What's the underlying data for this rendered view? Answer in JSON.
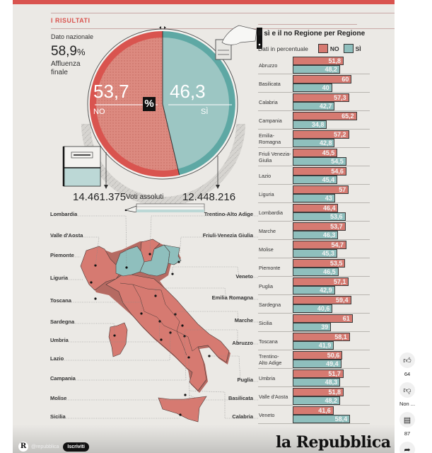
{
  "header": {
    "section_title": "I RISULTATI"
  },
  "national": {
    "label": "Dato nazionale",
    "turnout_value": "58,9",
    "turnout_unit": "%",
    "turnout_label_1": "Affluenza",
    "turnout_label_2": "finale"
  },
  "pie": {
    "no_value": "53,7",
    "no_label": "NO",
    "si_value": "46,3",
    "si_label": "SÌ",
    "center_symbol": "%",
    "no_absolute": "14.461.375",
    "si_absolute": "12.448.216",
    "absolute_label": "Voti assoluti"
  },
  "bars": {
    "title": "Il sì e il no Regione per Regione",
    "subtitle": "Dati in percentuale",
    "legend_no": "NO",
    "legend_si": "SÌ"
  },
  "map": {
    "labels_left": [
      "Lombardia",
      "Valle d'Aosta",
      "Piemonte",
      "Liguria",
      "Toscana",
      "Sardegna",
      "Umbria",
      "Lazio",
      "Campania",
      "Molise",
      "Sicilia"
    ],
    "labels_right": [
      "Trentino-Alto Adige",
      "Friuli-Venezia Giulia",
      "Veneto",
      "Emilia Romagna",
      "Marche",
      "Abruzzo",
      "Puglia",
      "Basilicata",
      "Calabria"
    ],
    "si_majority_regions": [
      "Lombardia",
      "Veneto",
      "Friuli-Venezia Giulia"
    ]
  },
  "footer": {
    "logo": "la Repubblica",
    "channel_avatar": "R",
    "channel_handle": "@repubblica",
    "subscribe_label": "Iscriviti"
  },
  "side_actions": {
    "like_count": "64",
    "dislike_label": "Non ...",
    "comment_count": "87"
  },
  "colors": {
    "no": "#d67a71",
    "si": "#8fbfbd",
    "accent": "#d9544f",
    "background": "#ebe9e5"
  },
  "chart_data": [
    {
      "type": "pie",
      "title": "Dato nazionale",
      "categories": [
        "NO",
        "SÌ"
      ],
      "values": [
        53.7,
        46.3
      ],
      "absolute_votes": [
        14461375,
        12448216
      ],
      "turnout_percent": 58.9,
      "annotations": [
        "Affluenza finale 58,9%",
        "Voti assoluti"
      ]
    },
    {
      "type": "bar",
      "orientation": "horizontal",
      "title": "Il sì e il no Regione per Regione",
      "subtitle": "Dati in percentuale",
      "legend": [
        "NO",
        "SÌ"
      ],
      "legend_position": "top",
      "categories": [
        "Abruzzo",
        "Basilicata",
        "Calabria",
        "Campania",
        "Emilia-Romagna",
        "Friuli Venezia-Giulia",
        "Lazio",
        "Liguria",
        "Lombardia",
        "Marche",
        "Molise",
        "Piemonte",
        "Puglia",
        "Sardegna",
        "Sicilia",
        "Toscana",
        "Trentino-Alto Adige",
        "Umbria",
        "Valle d'Aosta",
        "Veneto"
      ],
      "series": [
        {
          "name": "NO",
          "values": [
            51.8,
            60,
            57.3,
            65.2,
            57.2,
            45.5,
            54.6,
            57,
            46.4,
            53.7,
            54.7,
            53.5,
            57.1,
            59.4,
            61,
            58.1,
            50.6,
            51.7,
            51.8,
            41.6
          ]
        },
        {
          "name": "SÌ",
          "values": [
            48.2,
            40,
            42.7,
            34.8,
            42.8,
            54.5,
            45.4,
            43,
            53.6,
            46.3,
            45.3,
            46.5,
            42.9,
            40.6,
            39,
            41.9,
            49.4,
            48.3,
            48.2,
            58.4
          ]
        }
      ],
      "labels_no": [
        "51,8",
        "60",
        "57,3",
        "65,2",
        "57,2",
        "45,5",
        "54,6",
        "57",
        "46,4",
        "53,7",
        "54,7",
        "53,5",
        "57,1",
        "59,4",
        "61",
        "58,1",
        "50,6",
        "51,7",
        "51,8",
        "41,6"
      ],
      "labels_si": [
        "48,2",
        "40",
        "42,7",
        "34,8",
        "42,8",
        "54,5",
        "45,4",
        "43",
        "53,6",
        "46,3",
        "45,3",
        "46,5",
        "42,9",
        "40,6",
        "39",
        "41,9",
        "49,4",
        "48,3",
        "48,2",
        "58,4"
      ],
      "display_names": [
        "Abruzzo",
        "Basilicata",
        "Calabria",
        "Campania",
        "Emilia-\nRomagna",
        "Friuli Venezia-\nGiulia",
        "Lazio",
        "Liguria",
        "Lombardia",
        "Marche",
        "Molise",
        "Piemonte",
        "Puglia",
        "Sardegna",
        "Sicilia",
        "Toscana",
        "Trentino-\nAlto Adige",
        "Umbria",
        "Valle d'Aosta",
        "Veneto"
      ],
      "xlabel": "",
      "ylabel": "",
      "xlim": [
        0,
        70
      ],
      "grid": false
    }
  ]
}
